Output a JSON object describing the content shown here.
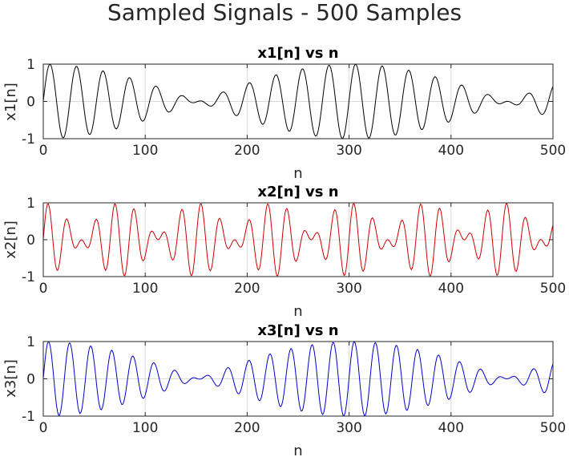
{
  "figure": {
    "title": "Sampled Signals - 500 Samples"
  },
  "chart_data": [
    {
      "type": "line",
      "title": "x1[n] vs n",
      "xlabel": "n",
      "ylabel": "x1[n]",
      "xlim": [
        0,
        500
      ],
      "ylim": [
        -1,
        1
      ],
      "xticks": [
        0,
        100,
        200,
        300,
        400,
        500
      ],
      "yticks": [
        -1,
        0,
        1
      ],
      "grid": true,
      "color": "#000000",
      "series": [
        {
          "n_start": 0,
          "n_end": 500,
          "components": [
            {
              "amplitude": 0.5,
              "cycles_per_sample": 0.0367,
              "phase": 0
            },
            {
              "amplitude": 0.5,
              "cycles_per_sample": 0.04,
              "phase": 0
            }
          ]
        }
      ]
    },
    {
      "type": "line",
      "title": "x2[n] vs n",
      "xlabel": "n",
      "ylabel": "x2[n]",
      "xlim": [
        0,
        500
      ],
      "ylim": [
        -1,
        1
      ],
      "xticks": [
        0,
        100,
        200,
        300,
        400,
        500
      ],
      "yticks": [
        -1,
        0,
        1
      ],
      "grid": true,
      "color": "#cc0000",
      "series": [
        {
          "n_start": 0,
          "n_end": 500,
          "components": [
            {
              "amplitude": 0.5,
              "cycles_per_sample": 0.0467,
              "phase": 0
            },
            {
              "amplitude": 0.5,
              "cycles_per_sample": 0.06,
              "phase": 0
            }
          ]
        }
      ]
    },
    {
      "type": "line",
      "title": "x3[n] vs n",
      "xlabel": "n",
      "ylabel": "x3[n]",
      "xlim": [
        0,
        500
      ],
      "ylim": [
        -1,
        1
      ],
      "xticks": [
        0,
        100,
        200,
        300,
        400,
        500
      ],
      "yticks": [
        -1,
        0,
        1
      ],
      "grid": true,
      "color": "#0000cc",
      "series": [
        {
          "n_start": 0,
          "n_end": 500,
          "components": [
            {
              "amplitude": 0.5,
              "cycles_per_sample": 0.0467,
              "phase": 0
            },
            {
              "amplitude": 0.5,
              "cycles_per_sample": 0.05,
              "phase": 0
            }
          ]
        }
      ]
    }
  ]
}
